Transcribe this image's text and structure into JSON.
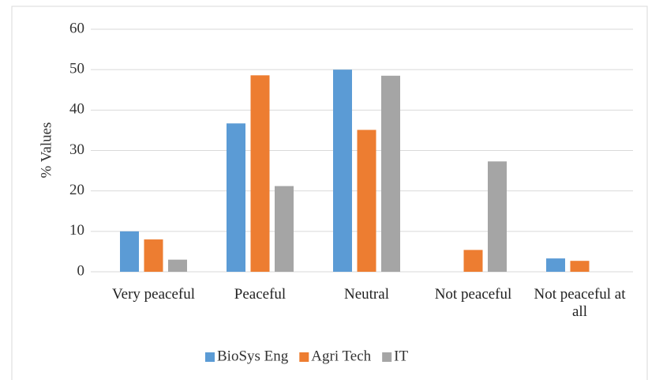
{
  "chart_data": {
    "type": "bar",
    "y_label": "% Values",
    "categories": [
      "Very peaceful",
      "Peaceful",
      "Neutral",
      "Not peaceful",
      "Not peaceful at all"
    ],
    "series": [
      {
        "name": "BioSys Eng",
        "color": "#5b9bd5",
        "values": [
          10,
          36.7,
          50,
          0,
          3.3
        ]
      },
      {
        "name": "Agri Tech",
        "color": "#ed7d31",
        "values": [
          8,
          48.6,
          35.1,
          5.4,
          2.7
        ]
      },
      {
        "name": "IT",
        "color": "#a5a5a5",
        "values": [
          3,
          21.2,
          48.5,
          27.3,
          0
        ]
      }
    ],
    "ylim": [
      0,
      60
    ],
    "yticks": [
      0,
      10,
      20,
      30,
      40,
      50,
      60
    ],
    "grid": true,
    "legend": "bottom"
  }
}
